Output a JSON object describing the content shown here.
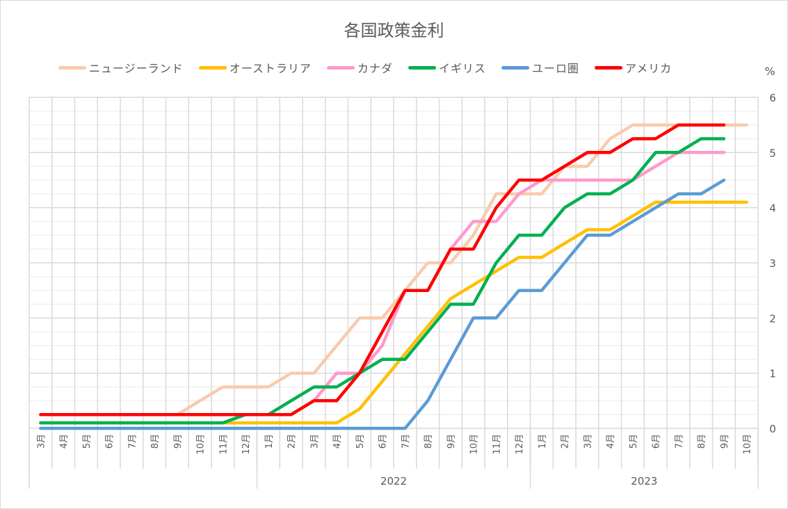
{
  "chart_data": {
    "type": "line",
    "title": "各国政策金利",
    "xlabel": "",
    "ylabel": "%",
    "ylim": [
      0,
      6
    ],
    "yticks": [
      0,
      1,
      2,
      3,
      4,
      5,
      6
    ],
    "y_axis_position": "right",
    "grid": {
      "major_horizontal": true,
      "minor_horizontal_step": 0.25,
      "vertical": true
    },
    "legend_position": "top",
    "year_groups": [
      {
        "label": "",
        "start": 0,
        "end": 9
      },
      {
        "label": "2022",
        "start": 10,
        "end": 21
      },
      {
        "label": "2023",
        "start": 22,
        "end": 31
      }
    ],
    "categories": [
      "3月",
      "4月",
      "5月",
      "6月",
      "7月",
      "8月",
      "9月",
      "10月",
      "11月",
      "12月",
      "1月",
      "2月",
      "3月",
      "4月",
      "5月",
      "6月",
      "7月",
      "8月",
      "9月",
      "10月",
      "11月",
      "12月",
      "1月",
      "2月",
      "3月",
      "4月",
      "5月",
      "6月",
      "7月",
      "8月",
      "9月",
      "10月"
    ],
    "series": [
      {
        "name": "ニュージーランド",
        "color": "#F8CBAD",
        "values": [
          0.25,
          0.25,
          0.25,
          0.25,
          0.25,
          0.25,
          0.25,
          0.5,
          0.75,
          0.75,
          0.75,
          1.0,
          1.0,
          1.5,
          2.0,
          2.0,
          2.5,
          3.0,
          3.0,
          3.5,
          4.25,
          4.25,
          4.25,
          4.75,
          4.75,
          5.25,
          5.5,
          5.5,
          5.5,
          5.5,
          5.5,
          5.5
        ]
      },
      {
        "name": "オーストラリア",
        "color": "#FFC000",
        "values": [
          0.1,
          0.1,
          0.1,
          0.1,
          0.1,
          0.1,
          0.1,
          0.1,
          0.1,
          0.1,
          0.1,
          0.1,
          0.1,
          0.1,
          0.35,
          0.85,
          1.35,
          1.85,
          2.35,
          2.6,
          2.85,
          3.1,
          3.1,
          3.35,
          3.6,
          3.6,
          3.85,
          4.1,
          4.1,
          4.1,
          4.1,
          4.1
        ]
      },
      {
        "name": "カナダ",
        "color": "#FF99CC",
        "values": [
          0.25,
          0.25,
          0.25,
          0.25,
          0.25,
          0.25,
          0.25,
          0.25,
          0.25,
          0.25,
          0.25,
          0.25,
          0.5,
          1.0,
          1.0,
          1.5,
          2.5,
          2.5,
          3.25,
          3.75,
          3.75,
          4.25,
          4.5,
          4.5,
          4.5,
          4.5,
          4.5,
          4.75,
          5.0,
          5.0,
          5.0,
          null
        ]
      },
      {
        "name": "イギリス",
        "color": "#00B050",
        "values": [
          0.1,
          0.1,
          0.1,
          0.1,
          0.1,
          0.1,
          0.1,
          0.1,
          0.1,
          0.25,
          0.25,
          0.5,
          0.75,
          0.75,
          1.0,
          1.25,
          1.25,
          1.75,
          2.25,
          2.25,
          3.0,
          3.5,
          3.5,
          4.0,
          4.25,
          4.25,
          4.5,
          5.0,
          5.0,
          5.25,
          5.25,
          null
        ]
      },
      {
        "name": "ユーロ圏",
        "color": "#5B9BD5",
        "values": [
          0,
          0,
          0,
          0,
          0,
          0,
          0,
          0,
          0,
          0,
          0,
          0,
          0,
          0,
          0,
          0,
          0,
          0.5,
          1.25,
          2.0,
          2.0,
          2.5,
          2.5,
          3.0,
          3.5,
          3.5,
          3.75,
          4.0,
          4.25,
          4.25,
          4.5,
          null
        ]
      },
      {
        "name": "アメリカ",
        "color": "#FF0000",
        "values": [
          0.25,
          0.25,
          0.25,
          0.25,
          0.25,
          0.25,
          0.25,
          0.25,
          0.25,
          0.25,
          0.25,
          0.25,
          0.5,
          0.5,
          1.0,
          1.75,
          2.5,
          2.5,
          3.25,
          3.25,
          4.0,
          4.5,
          4.5,
          4.75,
          5.0,
          5.0,
          5.25,
          5.25,
          5.5,
          5.5,
          5.5,
          null
        ]
      }
    ]
  }
}
